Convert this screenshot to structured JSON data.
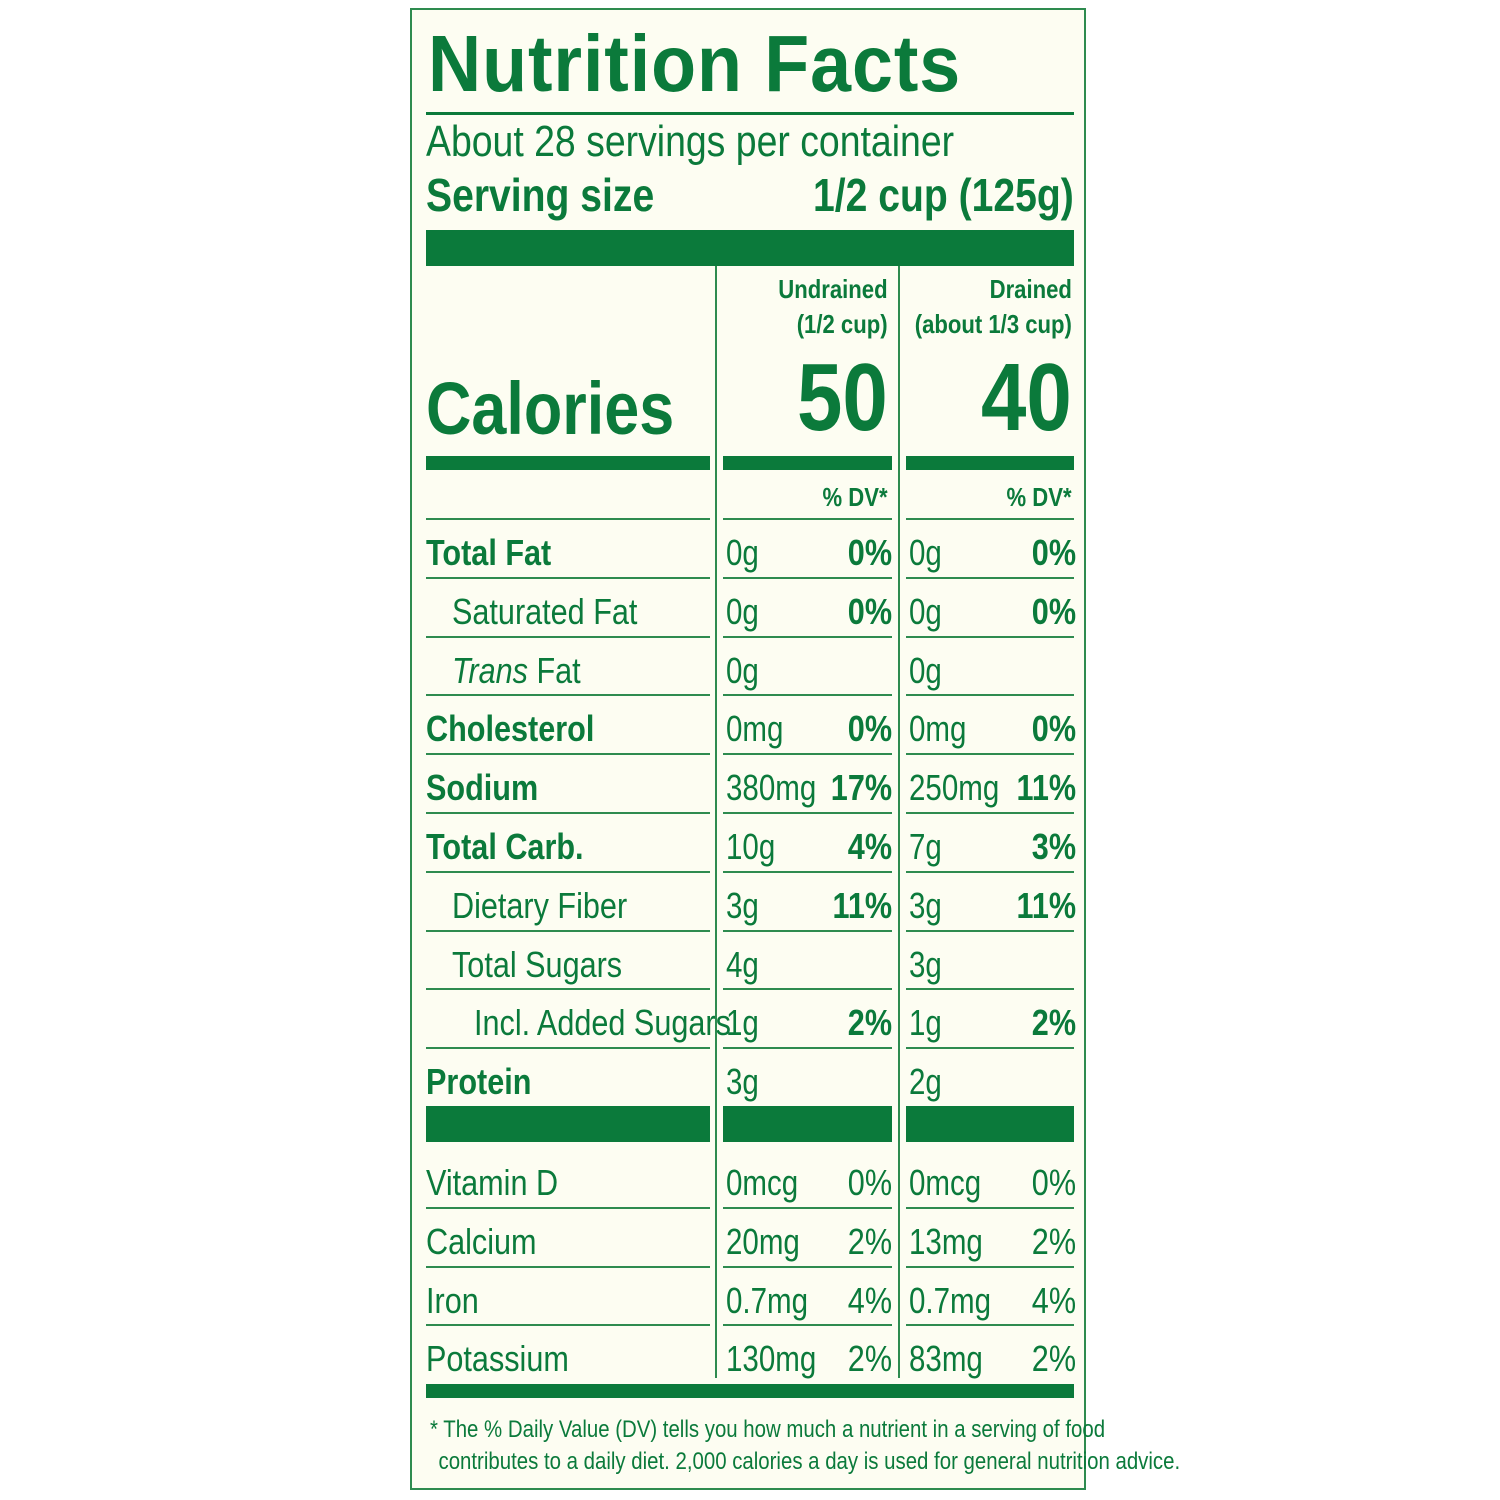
{
  "title": "Nutrition Facts",
  "servings_per_container": "About 28 servings per container",
  "serving_size_label": "Serving size",
  "serving_size_value": "1/2 cup (125g)",
  "columns": [
    {
      "head1": "Undrained",
      "head2": "(1/2 cup)",
      "calories": "50",
      "dv_label": "% DV*"
    },
    {
      "head1": "Drained",
      "head2": "(about 1/3 cup)",
      "calories": "40",
      "dv_label": "% DV*"
    }
  ],
  "calories_label": "Calories",
  "nutrients": [
    {
      "name": "Total Fat",
      "undrained_amount": "0g",
      "undrained_dv": "0%",
      "drained_amount": "0g",
      "drained_dv": "0%"
    },
    {
      "name": "Saturated Fat",
      "undrained_amount": "0g",
      "undrained_dv": "0%",
      "drained_amount": "0g",
      "drained_dv": "0%"
    },
    {
      "name_italic": "Trans",
      "name_rest": " Fat",
      "undrained_amount": "0g",
      "undrained_dv": "",
      "drained_amount": "0g",
      "drained_dv": ""
    },
    {
      "name": "Cholesterol",
      "undrained_amount": "0mg",
      "undrained_dv": "0%",
      "drained_amount": "0mg",
      "drained_dv": "0%"
    },
    {
      "name": "Sodium",
      "undrained_amount": "380mg",
      "undrained_dv": "17%",
      "drained_amount": "250mg",
      "drained_dv": "11%"
    },
    {
      "name": "Total Carb.",
      "undrained_amount": "10g",
      "undrained_dv": "4%",
      "drained_amount": "7g",
      "drained_dv": "3%"
    },
    {
      "name": "Dietary Fiber",
      "undrained_amount": "3g",
      "undrained_dv": "11%",
      "drained_amount": "3g",
      "drained_dv": "11%"
    },
    {
      "name": "Total Sugars",
      "undrained_amount": "4g",
      "undrained_dv": "",
      "drained_amount": "3g",
      "drained_dv": ""
    },
    {
      "name": "Incl. Added Sugars",
      "undrained_amount": "1g",
      "undrained_dv": "2%",
      "drained_amount": "1g",
      "drained_dv": "2%"
    },
    {
      "name": "Protein",
      "undrained_amount": "3g",
      "undrained_dv": "",
      "drained_amount": "2g",
      "drained_dv": ""
    }
  ],
  "vitamins": [
    {
      "name": "Vitamin D",
      "undrained_amount": "0mcg",
      "undrained_dv": "0%",
      "drained_amount": "0mcg",
      "drained_dv": "0%"
    },
    {
      "name": "Calcium",
      "undrained_amount": "20mg",
      "undrained_dv": "2%",
      "drained_amount": "13mg",
      "drained_dv": "2%"
    },
    {
      "name": "Iron",
      "undrained_amount": "0.7mg",
      "undrained_dv": "4%",
      "drained_amount": "0.7mg",
      "drained_dv": "4%"
    },
    {
      "name": "Potassium",
      "undrained_amount": "130mg",
      "undrained_dv": "2%",
      "drained_amount": "83mg",
      "drained_dv": "2%"
    }
  ],
  "footnote_line1": "* The % Daily Value (DV) tells you how much a nutrient in a serving of food",
  "footnote_line2": "contributes to a daily diet. 2,000 calories a day is used for general nutrition advice.",
  "colors": {
    "ink": "#0b7a3b",
    "background": "#fdfdf2",
    "border": "#2e8b4f"
  }
}
